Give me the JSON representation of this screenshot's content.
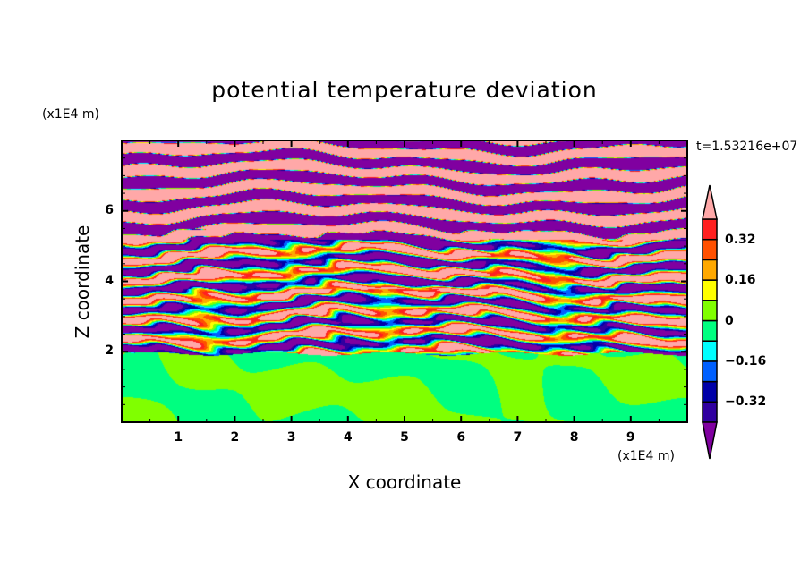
{
  "chart_data": {
    "type": "heatmap",
    "subtype": "filled-contour",
    "title": "potential temperature deviation",
    "xlabel": "X coordinate",
    "ylabel": "Z coordinate",
    "x_unit": "(x1E4 m)",
    "y_unit": "(x1E4 m)",
    "time_label": "t=1.53216e+07",
    "xlim": [
      0,
      10
    ],
    "ylim": [
      0,
      8
    ],
    "x_ticks": [
      1,
      2,
      3,
      4,
      5,
      6,
      7,
      8,
      9
    ],
    "y_ticks": [
      2,
      4,
      6
    ],
    "contour_levels": [
      -0.4,
      -0.32,
      -0.24,
      -0.16,
      -0.08,
      0,
      0.08,
      0.16,
      0.24,
      0.32,
      0.4
    ],
    "colorbar_labels": [
      "0.32",
      "0.16",
      "0",
      "-0.16",
      "-0.32"
    ],
    "colorbar_label_values": [
      0.32,
      0.16,
      0,
      -0.16,
      -0.32
    ],
    "colors": [
      "#8000a0",
      "#3000a0",
      "#0000a8",
      "#0060ff",
      "#00ffff",
      "#00ff80",
      "#80ff00",
      "#ffff00",
      "#ffa800",
      "#ff5000",
      "#ff2020",
      "#ffa8a8"
    ],
    "colorbar_extends": "both",
    "grid": false,
    "legend": "right"
  }
}
